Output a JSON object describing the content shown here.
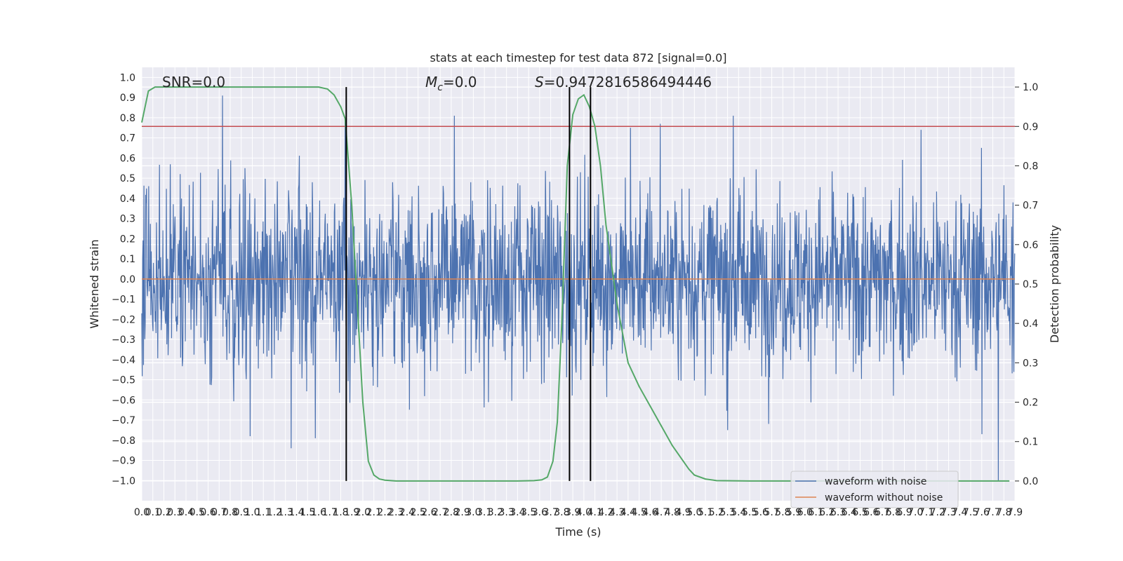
{
  "chart_data": {
    "type": "line",
    "title": "stats at each timestep for test data 872 [signal=0.0]",
    "xlabel": "Time (s)",
    "ylabel": "Whitened strain",
    "y2label": "Detection probability",
    "xlim": [
      0.0,
      7.9
    ],
    "ylim": [
      -1.1,
      1.05
    ],
    "y2lim": [
      -0.05,
      1.05
    ],
    "x_ticks_step": 0.1,
    "y_ticks": [
      -1.0,
      -0.9,
      -0.8,
      -0.7,
      -0.6,
      -0.5,
      -0.4,
      -0.3,
      -0.2,
      -0.1,
      0.0,
      0.1,
      0.2,
      0.3,
      0.4,
      0.5,
      0.6,
      0.7,
      0.8,
      0.9,
      1.0
    ],
    "y2_ticks": [
      0.0,
      0.1,
      0.2,
      0.3,
      0.4,
      0.5,
      0.6,
      0.7,
      0.8,
      0.9,
      1.0
    ],
    "annotations": {
      "snr": "SNR=0.0",
      "mc_symbol": "M",
      "mc_subscript": "c",
      "mc_value": "=0.0",
      "s_symbol": "S",
      "s_value": "=0.9472816586494446"
    },
    "threshold_y2": 0.9,
    "vlines_x": [
      1.85,
      3.87,
      4.06
    ],
    "legend": {
      "placement": "lower-right",
      "entries": [
        {
          "label": "waveform with noise",
          "color": "#4c72b0"
        },
        {
          "label": "waveform without noise",
          "color": "#dd8452"
        }
      ]
    },
    "series": [
      {
        "name": "waveform with noise",
        "color": "#4c72b0",
        "sample_rate": 256,
        "envelope_p95_abs": 0.45,
        "notable_peaks": [
          {
            "x": 0.73,
            "y": 0.91
          },
          {
            "x": 1.84,
            "y": 0.79
          },
          {
            "x": 2.83,
            "y": 0.81
          },
          {
            "x": 4.42,
            "y": 0.75
          },
          {
            "x": 4.69,
            "y": 0.77
          },
          {
            "x": 5.35,
            "y": 0.81
          },
          {
            "x": 7.05,
            "y": 0.74
          },
          {
            "x": 1.35,
            "y": -0.84
          },
          {
            "x": 1.57,
            "y": -0.79
          },
          {
            "x": 0.98,
            "y": -0.78
          },
          {
            "x": 5.3,
            "y": -0.75
          },
          {
            "x": 7.6,
            "y": -0.77
          },
          {
            "x": 7.75,
            "y": -1.0
          }
        ]
      },
      {
        "name": "waveform without noise",
        "color": "#dd8452",
        "x": [
          0.0,
          7.9
        ],
        "values": [
          0.0,
          0.0
        ]
      },
      {
        "name": "",
        "axis": "y2",
        "color": "#55a868",
        "x": [
          0.0,
          0.06,
          0.12,
          0.2,
          0.4,
          0.8,
          1.2,
          1.5,
          1.6,
          1.68,
          1.74,
          1.8,
          1.84,
          1.9,
          1.95,
          2.0,
          2.05,
          2.1,
          2.15,
          2.2,
          2.3,
          2.5,
          3.0,
          3.4,
          3.55,
          3.62,
          3.67,
          3.72,
          3.76,
          3.8,
          3.85,
          3.9,
          3.95,
          4.0,
          4.05,
          4.1,
          4.15,
          4.2,
          4.3,
          4.4,
          4.5,
          4.6,
          4.7,
          4.8,
          4.9,
          4.95,
          5.0,
          5.1,
          5.2,
          5.5,
          6.0,
          7.0,
          7.85
        ],
        "values": [
          0.91,
          0.99,
          1.0,
          1.0,
          1.0,
          1.0,
          1.0,
          1.0,
          1.0,
          0.995,
          0.98,
          0.95,
          0.92,
          0.7,
          0.45,
          0.2,
          0.05,
          0.015,
          0.005,
          0.002,
          0.0,
          0.0,
          0.0,
          0.0,
          0.001,
          0.003,
          0.01,
          0.05,
          0.15,
          0.4,
          0.8,
          0.93,
          0.97,
          0.98,
          0.95,
          0.9,
          0.8,
          0.65,
          0.45,
          0.3,
          0.24,
          0.19,
          0.14,
          0.09,
          0.05,
          0.03,
          0.015,
          0.005,
          0.001,
          0.0,
          0.0,
          0.0,
          0.0
        ]
      }
    ]
  }
}
